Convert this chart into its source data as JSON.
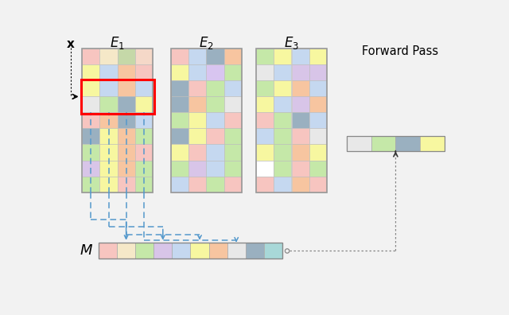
{
  "title": "Forward Pass",
  "E1_colors": [
    [
      "#f7c5c0",
      "#f5e8c8",
      "#c5d8a8",
      "#f5d8c8"
    ],
    [
      "#f7f7a0",
      "#c5d8f0",
      "#f7c5a0",
      "#f7c5c0"
    ],
    [
      "#f7f7a0",
      "#c5d8f0",
      "#f7c5a0",
      "#c5d8f0"
    ],
    [
      "#e8e8e8",
      "#c5e8a8",
      "#9ab0c0",
      "#f7f7a0"
    ],
    [
      "#f7c5c0",
      "#f7c5a0",
      "#9ab0c0",
      "#c5d8f0"
    ],
    [
      "#9ab0c0",
      "#f7f7a0",
      "#f7c5a0",
      "#c5e8a8"
    ],
    [
      "#c5e8a8",
      "#f7f7a0",
      "#f7c5a0",
      "#f7c5c0"
    ],
    [
      "#d8c5e8",
      "#f7f7a0",
      "#f7c5a0",
      "#c5e8a8"
    ],
    [
      "#c5e8a8",
      "#f7f7a0",
      "#f7c5c0",
      "#c5e8a8"
    ]
  ],
  "E2_colors": [
    [
      "#f7c5c0",
      "#c5d8f0",
      "#9ab0c0",
      "#f7c5a0"
    ],
    [
      "#f7f7a0",
      "#c5d8f0",
      "#d8c5f0",
      "#c5e8a8"
    ],
    [
      "#9ab0c0",
      "#f7c5c0",
      "#c5e8a8",
      "#c5d8f0"
    ],
    [
      "#9ab0c0",
      "#f7c5a0",
      "#c5e8a8",
      "#e8e8e8"
    ],
    [
      "#c5e8a8",
      "#f7f7a0",
      "#c5d8f0",
      "#f7c5c0"
    ],
    [
      "#9ab0c0",
      "#f7f7a0",
      "#f7c5c0",
      "#c5e8a8"
    ],
    [
      "#f7f7a0",
      "#f7c5c0",
      "#c5d8f0",
      "#c5e8a8"
    ],
    [
      "#c5e8a8",
      "#d8c5e8",
      "#c5d8f0",
      "#c5e8a8"
    ],
    [
      "#c5d8f0",
      "#f7c5c0",
      "#c5e8a8",
      "#f7c5c0"
    ]
  ],
  "E3_colors": [
    [
      "#c5e8a8",
      "#f7f7a0",
      "#c5d8f0",
      "#f7f7a0"
    ],
    [
      "#e8e8e8",
      "#c5d8f0",
      "#d8c5e8",
      "#d8c5e8"
    ],
    [
      "#c5e8a8",
      "#f7f7a0",
      "#f7c5a0",
      "#c5d8f0"
    ],
    [
      "#f7f7a0",
      "#c5d8f0",
      "#d8c5e8",
      "#f7c5a0"
    ],
    [
      "#f7c5c0",
      "#c5e8a8",
      "#9ab0c0",
      "#c5d8f0"
    ],
    [
      "#c5d8f0",
      "#c5e8a8",
      "#f7c5c0",
      "#e8e8e8"
    ],
    [
      "#f7f7a0",
      "#c5e8a8",
      "#f7c5a0",
      "#f7f7a0"
    ],
    [
      "#ffffff",
      "#c5e8a8",
      "#f7c5c0",
      "#c5e8a8"
    ],
    [
      "#f7c5c0",
      "#c5d8f0",
      "#f7c5a0",
      "#f7c5c0"
    ]
  ],
  "M_colors": [
    "#f7c5c0",
    "#f5e8c8",
    "#c5e8a8",
    "#d8c5e8",
    "#c5d8f0",
    "#f7f7a0",
    "#f7c5a0",
    "#e8e8e8",
    "#9ab0c0",
    "#a8d8d8"
  ],
  "fp_colors": [
    "#e8e8e8",
    "#c5e8a8",
    "#9ab0c0",
    "#f7f7a0"
  ],
  "bg_color": "#f0f0f0"
}
